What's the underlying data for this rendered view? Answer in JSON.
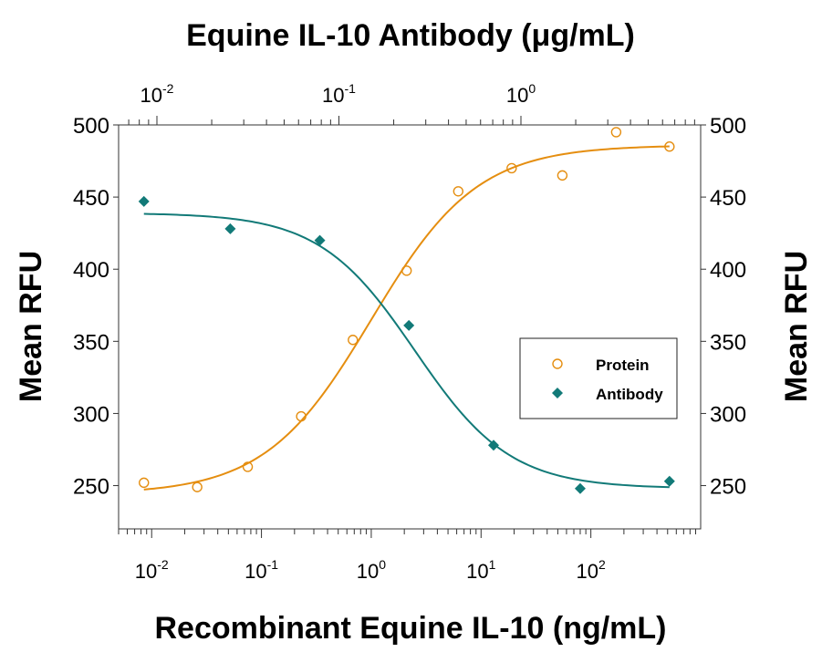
{
  "chart_data": {
    "type": "scatter",
    "title": "Equine IL-10 Antibody (μg/mL)",
    "xlabel": "Recombinant Equine IL-10 (ng/mL)",
    "ylabel": "Mean RFU",
    "ylabel_right": "Mean RFU",
    "x_scale": "log",
    "xlim": [
      0.005,
      1000
    ],
    "ylim": [
      220,
      500
    ],
    "yticks": [
      250,
      300,
      350,
      400,
      450,
      500
    ],
    "xticks_bottom": [
      {
        "value": 0.01,
        "base": "10",
        "exp": "-2"
      },
      {
        "value": 0.1,
        "base": "10",
        "exp": "-1"
      },
      {
        "value": 1,
        "base": "10",
        "exp": "0"
      },
      {
        "value": 10,
        "base": "10",
        "exp": "1"
      },
      {
        "value": 100,
        "base": "10",
        "exp": "2"
      }
    ],
    "top_axis": {
      "ticks": [
        {
          "value": 0.01,
          "base": "10",
          "exp": "-2"
        },
        {
          "value": 0.1,
          "base": "10",
          "exp": "-1"
        },
        {
          "value": 1,
          "base": "10",
          "exp": "0"
        }
      ]
    },
    "legend": {
      "position": "right"
    },
    "series": [
      {
        "name": "Protein",
        "marker": "open-circle",
        "color": "#e58e10",
        "x": [
          0.0085,
          0.026,
          0.075,
          0.23,
          0.68,
          2.1,
          6.2,
          19,
          55,
          170,
          520
        ],
        "y": [
          252,
          249,
          263,
          298,
          351,
          399,
          454,
          470,
          465,
          495,
          485
        ]
      },
      {
        "name": "Antibody",
        "marker": "filled-diamond",
        "color": "#127a78",
        "x": [
          0.0085,
          0.052,
          0.34,
          2.2,
          13,
          80,
          520
        ],
        "y": [
          447,
          428,
          420,
          361,
          278,
          248,
          253
        ]
      }
    ],
    "fit_curves": [
      {
        "series": "Protein",
        "bottom": 244,
        "top": 486,
        "ec50": 1.0,
        "hill": 0.9
      },
      {
        "series": "Antibody",
        "bottom": 248,
        "top": 439,
        "ec50": 2.5,
        "hill": 1.0
      }
    ]
  }
}
